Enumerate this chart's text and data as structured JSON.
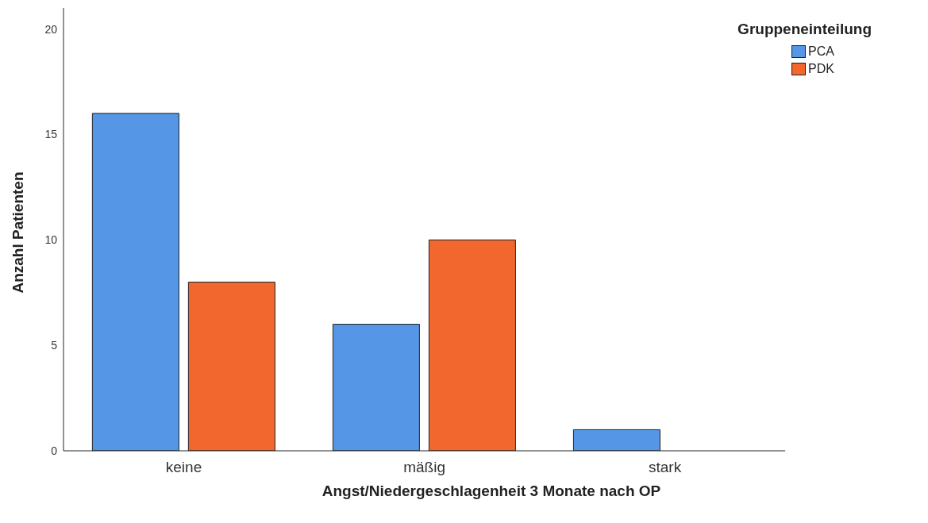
{
  "chart_data": {
    "type": "bar",
    "xlabel": "Angst/Niedergeschlagenheit 3 Monate nach OP",
    "ylabel": "Anzahl Patienten",
    "legend_title": "Gruppeneinteilung",
    "categories": [
      "keine",
      "mäßig",
      "stark"
    ],
    "series": [
      {
        "name": "PCA",
        "color": "#5596e6",
        "values": [
          16,
          6,
          1
        ]
      },
      {
        "name": "PDK",
        "color": "#f1672d",
        "values": [
          8,
          10,
          0
        ]
      }
    ],
    "ylim": [
      0,
      21
    ],
    "yticks": [
      0,
      5,
      10,
      15,
      20
    ],
    "grid": false,
    "legend": "top right"
  }
}
